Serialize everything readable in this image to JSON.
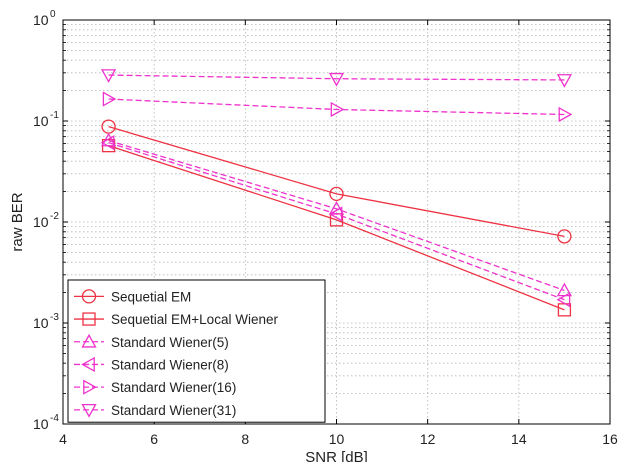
{
  "chart_data": {
    "type": "line",
    "xlabel": "SNR [dB]",
    "ylabel": "raw BER",
    "xlim": [
      4,
      16
    ],
    "ylim": [
      0.0001,
      1
    ],
    "yscale": "log",
    "grid": true,
    "legend_position": "bottom-left",
    "x_ticks": [
      4,
      6,
      8,
      10,
      12,
      14,
      16
    ],
    "y_ticks": [
      {
        "value": 0.0001,
        "base": "10",
        "exp": "-4"
      },
      {
        "value": 0.001,
        "base": "10",
        "exp": "-3"
      },
      {
        "value": 0.01,
        "base": "10",
        "exp": "-2"
      },
      {
        "value": 0.1,
        "base": "10",
        "exp": "-1"
      },
      {
        "value": 1,
        "base": "10",
        "exp": "0"
      }
    ],
    "series": [
      {
        "name": "Sequetial EM",
        "marker": "circle",
        "dashed": false,
        "color": "#ee3344",
        "x": [
          5,
          10,
          15
        ],
        "y": [
          0.088,
          0.019,
          0.0072
        ]
      },
      {
        "name": "Sequetial EM+Local Wiener",
        "marker": "square",
        "dashed": false,
        "color": "#ee3344",
        "x": [
          5,
          10,
          15
        ],
        "y": [
          0.057,
          0.0105,
          0.00135
        ]
      },
      {
        "name": "Standard Wiener(5)",
        "marker": "triangle-up",
        "dashed": true,
        "color": "#ee33cc",
        "x": [
          5,
          10,
          15
        ],
        "y": [
          0.064,
          0.0135,
          0.0021
        ]
      },
      {
        "name": "Standard Wiener(8)",
        "marker": "triangle-left",
        "dashed": true,
        "color": "#ee33cc",
        "x": [
          5,
          10,
          15
        ],
        "y": [
          0.061,
          0.012,
          0.0017
        ]
      },
      {
        "name": "Standard Wiener(16)",
        "marker": "triangle-right",
        "dashed": true,
        "color": "#ee33cc",
        "x": [
          5,
          10,
          15
        ],
        "y": [
          0.165,
          0.13,
          0.116
        ]
      },
      {
        "name": "Standard Wiener(31)",
        "marker": "triangle-down",
        "dashed": true,
        "color": "#ee33cc",
        "x": [
          5,
          10,
          15
        ],
        "y": [
          0.285,
          0.262,
          0.255
        ]
      }
    ]
  }
}
